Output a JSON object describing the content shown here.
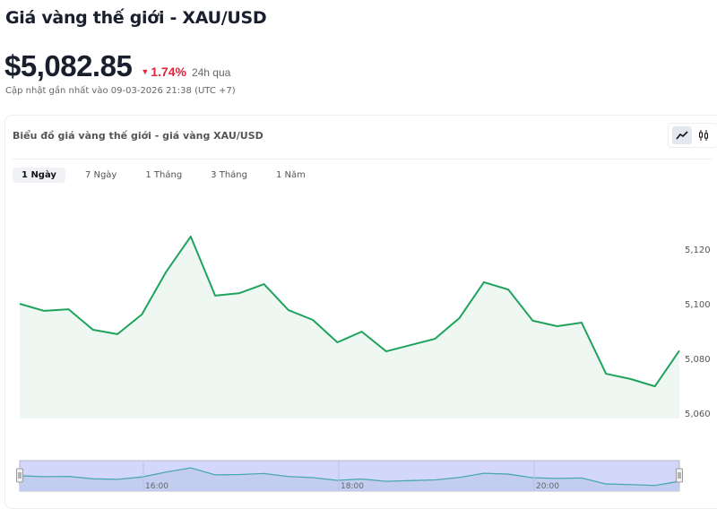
{
  "header": {
    "title": "Giá vàng thế giới - XAU/USD",
    "price": "$5,082.85",
    "change": "1.74%",
    "change_direction": "down",
    "period": "24h qua",
    "updated": "Cập nhật gần nhất vào 09-03-2026 21:38 (UTC +7)"
  },
  "card": {
    "title": "Biểu đồ giá vàng thế giới - giá vàng XAU/USD",
    "chart_types": [
      {
        "icon": "line-chart-icon",
        "active": true
      },
      {
        "icon": "candlestick-icon",
        "active": false
      }
    ],
    "tabs": [
      {
        "label": "1 Ngày",
        "active": true
      },
      {
        "label": "7 Ngày"
      },
      {
        "label": "1 Tháng"
      },
      {
        "label": "3 Tháng"
      },
      {
        "label": "1 Năm"
      }
    ]
  },
  "colors": {
    "line": "#1fa35c",
    "fill": "#eef7f1",
    "down": "#e0243b",
    "navigator": "#d3d8fb"
  },
  "chart_data": {
    "type": "area",
    "x": [
      "14:45",
      "15:00",
      "15:15",
      "15:30",
      "15:45",
      "16:00",
      "16:15",
      "16:30",
      "16:45",
      "17:00",
      "17:15",
      "17:30",
      "17:45",
      "18:00",
      "18:15",
      "18:30",
      "18:45",
      "19:00",
      "19:15",
      "19:30",
      "19:45",
      "20:00",
      "20:15",
      "20:30",
      "20:45",
      "21:00",
      "21:15",
      "21:30"
    ],
    "values": [
      5100,
      5097.4,
      5098,
      5090.5,
      5088.9,
      5096.1,
      5111.8,
      5124.6,
      5103,
      5103.9,
      5107.2,
      5097.7,
      5094.1,
      5085.9,
      5089.8,
      5082.6,
      5084.9,
      5087.2,
      5094.8,
      5107.9,
      5105.2,
      5093.8,
      5091.8,
      5093.1,
      5074.4,
      5072.5,
      5069.8,
      5082.85
    ],
    "y_ticks": [
      "5,060",
      "5,080",
      "5,100",
      "5,120"
    ],
    "y_tick_values": [
      5060,
      5080,
      5100,
      5120
    ],
    "navigator_ticks": [
      "16:00",
      "18:00",
      "20:00"
    ],
    "ylim": [
      5058,
      5128
    ],
    "y_axis": "right",
    "grid": false
  }
}
